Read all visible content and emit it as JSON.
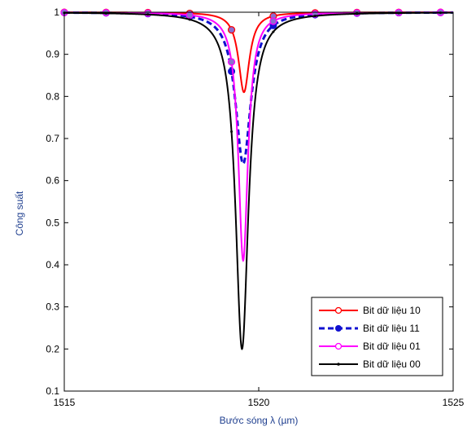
{
  "chart_data": {
    "type": "line",
    "xlabel": "Bước sóng λ (µm)",
    "ylabel": "Công suất",
    "xlim": [
      1515,
      1525
    ],
    "ylim": [
      0.1,
      1
    ],
    "xticks": [
      "1515",
      "1520",
      "1525"
    ],
    "yticks": [
      "0.1",
      "0.2",
      "0.3",
      "0.4",
      "0.5",
      "0.6",
      "0.7",
      "0.8",
      "0.9",
      "1"
    ],
    "grid": false,
    "legend_position": "bottom-right",
    "series": [
      {
        "name": "Bit dữ liệu 10",
        "color": "#ff0000",
        "style": "solid",
        "marker": "circle",
        "center": 1519.62,
        "min": 0.81,
        "halfwidth": 0.17
      },
      {
        "name": "Bit dữ liệu 11",
        "color": "#1010d0",
        "style": "dashed",
        "marker": "circle-filled",
        "center": 1519.6,
        "min": 0.64,
        "halfwidth": 0.24
      },
      {
        "name": "Bit dữ liệu 01",
        "color": "#ff00ff",
        "style": "solid",
        "marker": "circle",
        "center": 1519.6,
        "min": 0.41,
        "halfwidth": 0.15
      },
      {
        "name": "Bit dữ liệu 00",
        "color": "#000000",
        "style": "solid",
        "marker": "point",
        "center": 1519.57,
        "min": 0.2,
        "halfwidth": 0.2
      }
    ]
  }
}
